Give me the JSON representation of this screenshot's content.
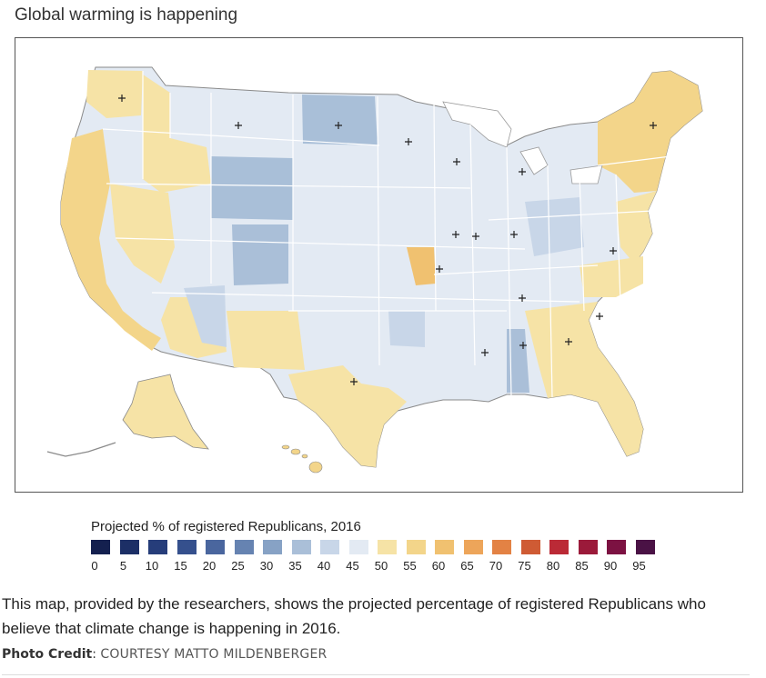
{
  "map": {
    "title": "Global warming is happening",
    "colors": {
      "light_blue": "#dde6f1",
      "mid_blue": "#a9bfd8",
      "pale_yellow": "#f6e1a1",
      "yellow": "#f2d68c",
      "orange": "#eec27a",
      "state_border": "#ffffff",
      "outline": "#777777"
    }
  },
  "legend": {
    "title": "Projected % of registered Republicans, 2016",
    "colors": [
      "#14204f",
      "#1c2f66",
      "#263d7a",
      "#35508d",
      "#4a669e",
      "#6683b1",
      "#87a2c5",
      "#aabfd8",
      "#c8d6e8",
      "#e3eaf3",
      "#f6e3a6",
      "#f3d58a",
      "#f0c170",
      "#eda55a",
      "#e38244",
      "#cf5b34",
      "#bb2a36",
      "#9b1a3a",
      "#7c1242",
      "#4a1245"
    ],
    "ticks": [
      "0",
      "5",
      "10",
      "15",
      "20",
      "25",
      "30",
      "35",
      "40",
      "45",
      "50",
      "55",
      "60",
      "65",
      "70",
      "75",
      "80",
      "85",
      "90",
      "95"
    ]
  },
  "caption": "This map, provided by the researchers, shows the projected percentage of registered Republicans who believe that climate change is happening in 2016.",
  "credit": {
    "label": "Photo Credit",
    "separator": ":",
    "value": "COURTESY MATTO MILDENBERGER"
  }
}
